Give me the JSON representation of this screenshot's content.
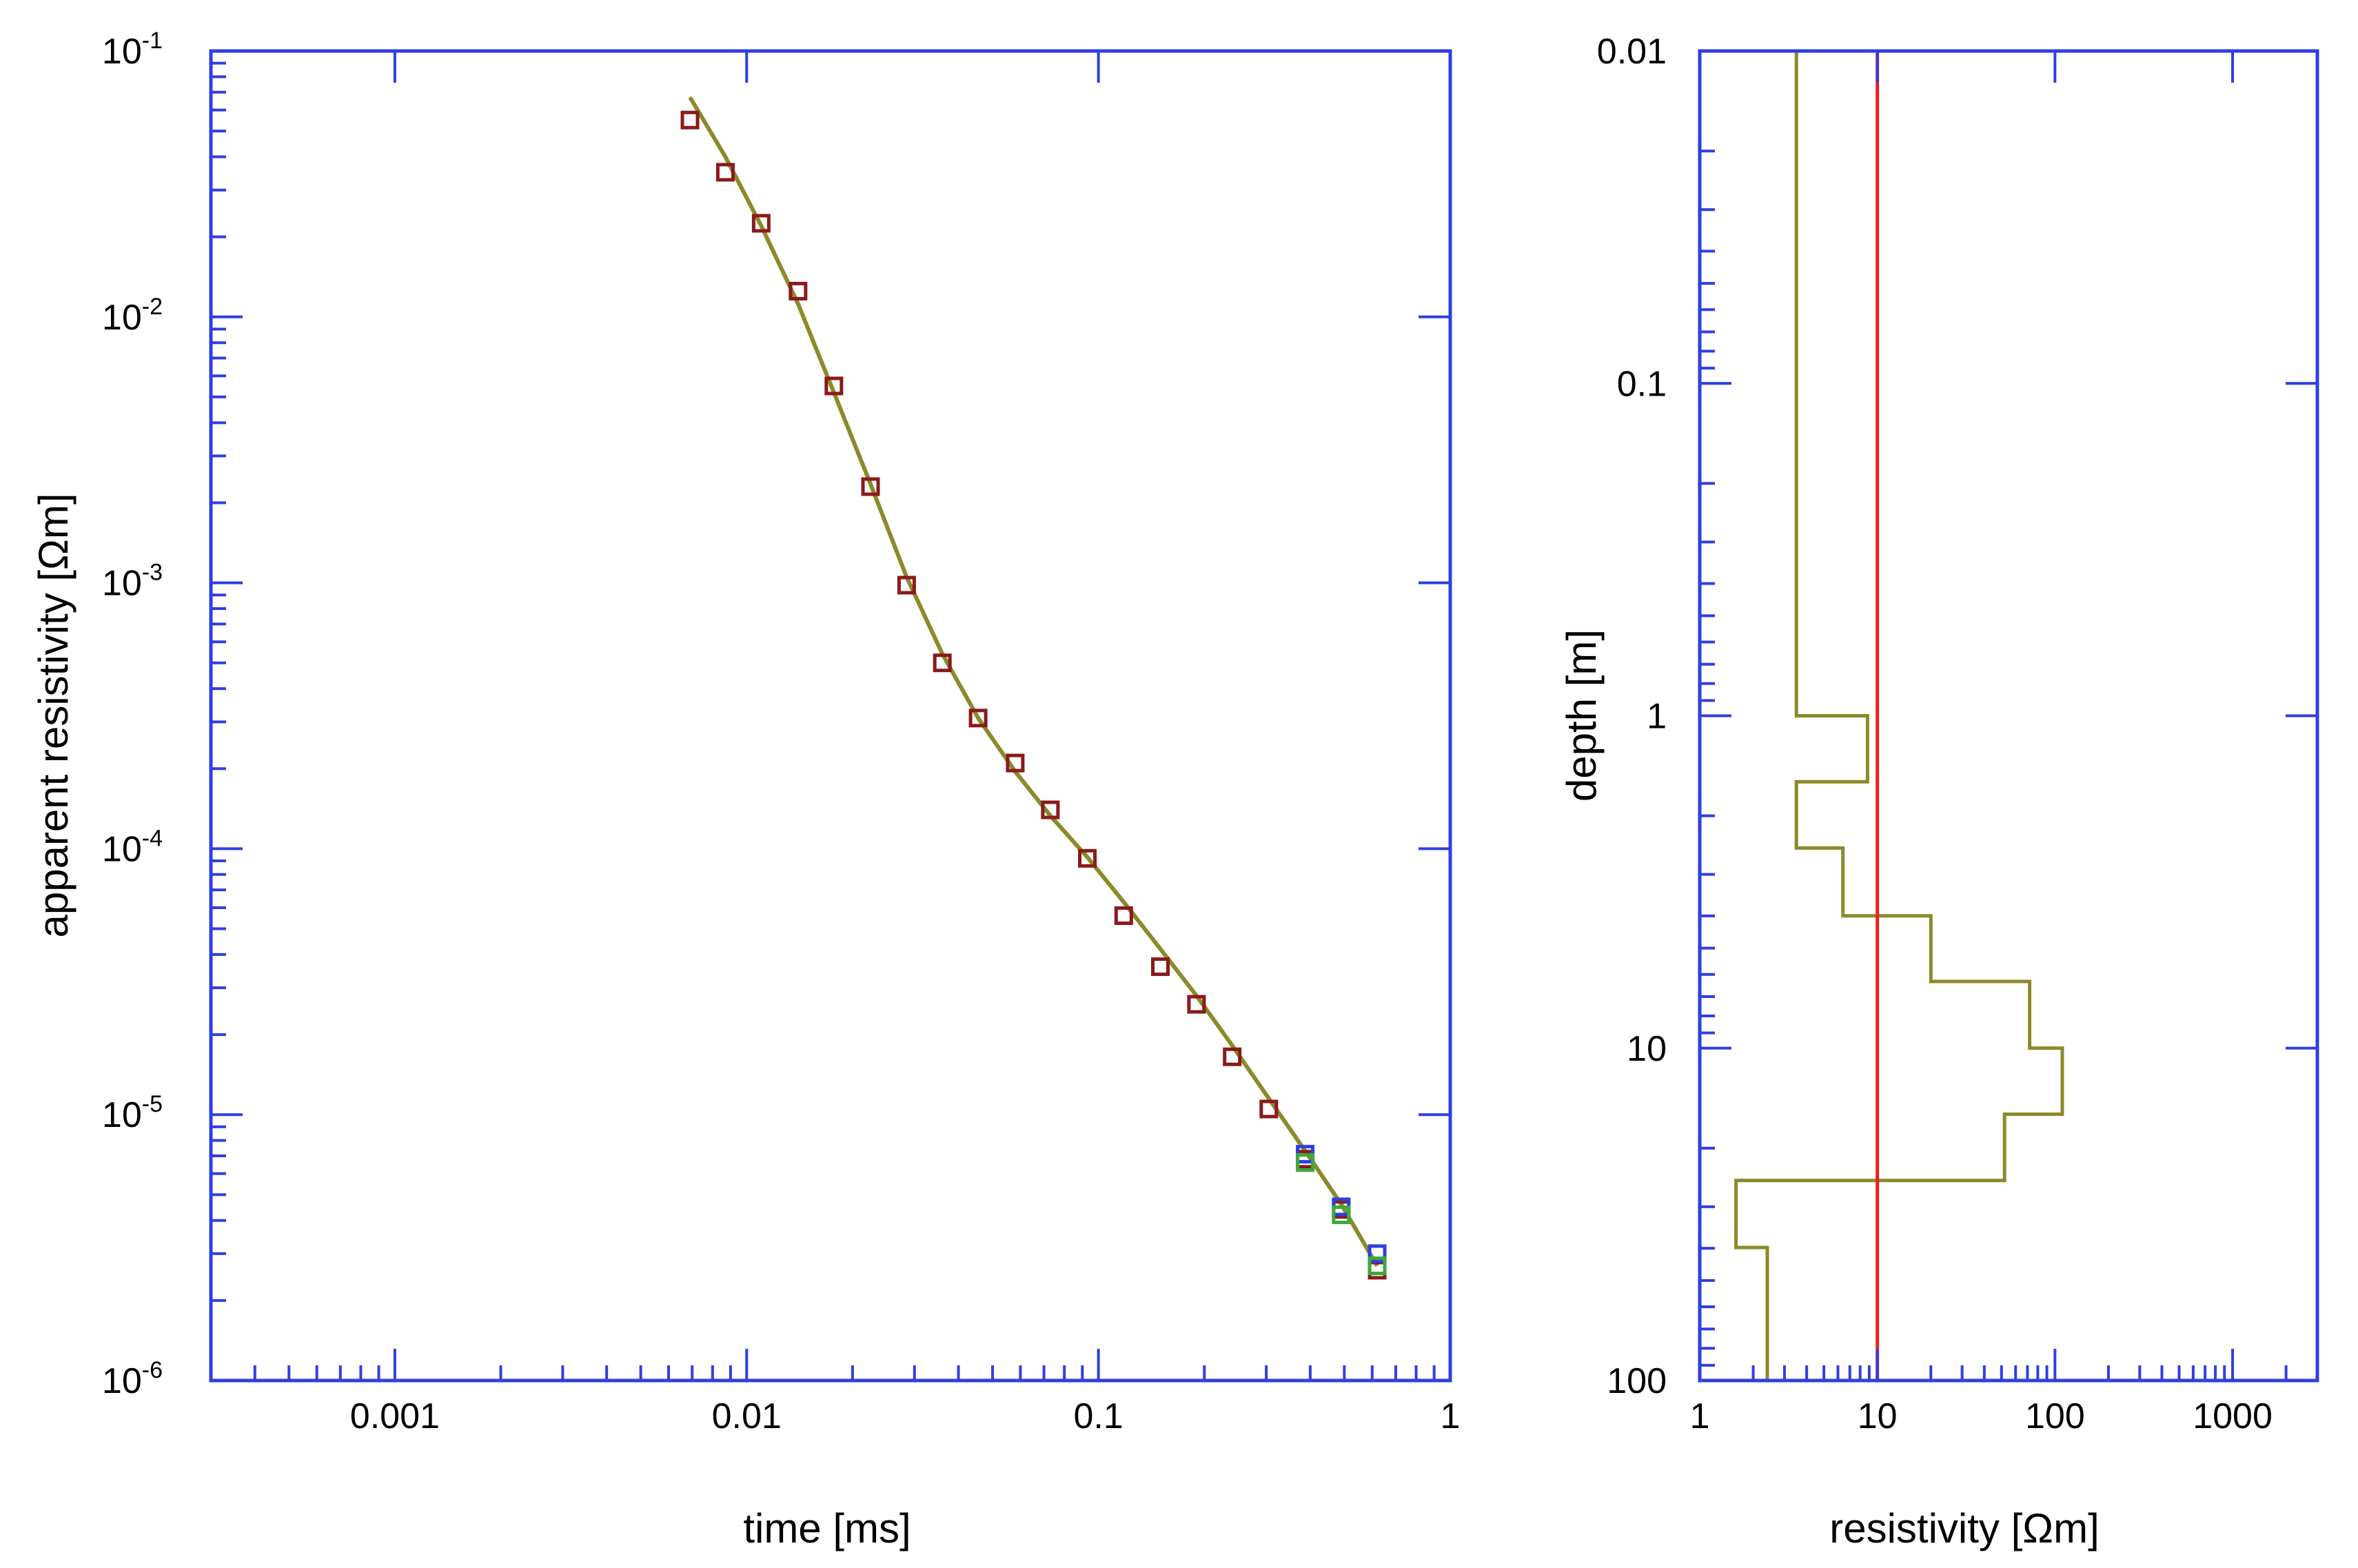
{
  "chart_data": [
    {
      "type": "scatter",
      "title": "",
      "xlabel": "time [ms]",
      "ylabel": "apparent resistivity [Ωm]",
      "xscale": "log",
      "yscale": "log",
      "xlim": [
        0.0003,
        1
      ],
      "ylim": [
        1e-06,
        0.1
      ],
      "x_tick_labels": [
        {
          "value": 0.001,
          "label": "0.001"
        },
        {
          "value": 0.01,
          "label": "0.01"
        },
        {
          "value": 0.1,
          "label": "0.1"
        },
        {
          "value": 1,
          "label": "1"
        }
      ],
      "y_tick_labels": [
        {
          "value": 0.1,
          "base": "10",
          "exp": "-1"
        },
        {
          "value": 0.01,
          "base": "10",
          "exp": "-2"
        },
        {
          "value": 0.001,
          "base": "10",
          "exp": "-3"
        },
        {
          "value": 0.0001,
          "base": "10",
          "exp": "-4"
        },
        {
          "value": 1e-05,
          "base": "10",
          "exp": "-5"
        },
        {
          "value": 1e-06,
          "base": "10",
          "exp": "-6"
        }
      ],
      "grid": false,
      "axis_color": "#2f3fe0",
      "series": [
        {
          "kind": "markers",
          "marker": "open-square",
          "color": "#8b1a1a",
          "x": [
            0.0069,
            0.0087,
            0.011,
            0.014,
            0.0177,
            0.0225,
            0.0285,
            0.036,
            0.0455,
            0.058,
            0.073,
            0.093,
            0.118,
            0.15,
            0.19,
            0.24,
            0.305,
            0.387,
            0.49,
            0.62
          ],
          "y": [
            0.055,
            0.035,
            0.0225,
            0.0125,
            0.0055,
            0.0023,
            0.00098,
            0.0005,
            0.00031,
            0.00021,
            0.00014,
            9.2e-05,
            5.6e-05,
            3.6e-05,
            2.6e-05,
            1.65e-05,
            1.05e-05,
            6.8e-06,
            4.4e-06,
            2.6e-06
          ]
        },
        {
          "kind": "markers",
          "marker": "open-square",
          "color": "#2f3fe0",
          "x": [
            0.387,
            0.49,
            0.62
          ],
          "y": [
            7.1e-06,
            4.5e-06,
            3e-06
          ]
        },
        {
          "kind": "markers",
          "marker": "open-square",
          "color": "#3caa3c",
          "x": [
            0.387,
            0.49,
            0.62
          ],
          "y": [
            6.6e-06,
            4.2e-06,
            2.7e-06
          ]
        },
        {
          "kind": "line",
          "color": "#8c8a2a",
          "x": [
            0.0069,
            0.0087,
            0.011,
            0.014,
            0.0177,
            0.0225,
            0.0285,
            0.036,
            0.0455,
            0.058,
            0.073,
            0.093,
            0.118,
            0.15,
            0.19,
            0.24,
            0.305,
            0.387,
            0.49,
            0.62
          ],
          "y": [
            0.067,
            0.04,
            0.022,
            0.0112,
            0.0052,
            0.00235,
            0.00105,
            0.00054,
            0.00031,
            0.000195,
            0.000133,
            9.3e-05,
            6.3e-05,
            4.2e-05,
            2.8e-05,
            1.82e-05,
            1.15e-05,
            7.3e-06,
            4.6e-06,
            2.7e-06
          ]
        }
      ]
    },
    {
      "type": "line",
      "title": "",
      "xlabel": "resistivity [Ωm]",
      "ylabel": "depth [m]",
      "xscale": "log",
      "yscale": "log",
      "y_inverted": true,
      "xlim": [
        1,
        3000
      ],
      "ylim": [
        0.01,
        100
      ],
      "x_tick_labels": [
        {
          "value": 1,
          "label": "1"
        },
        {
          "value": 10,
          "label": "10"
        },
        {
          "value": 100,
          "label": "100"
        },
        {
          "value": 1000,
          "label": "1000"
        }
      ],
      "y_tick_labels": [
        {
          "value": 0.01,
          "label": "0.01"
        },
        {
          "value": 0.1,
          "label": "0.1"
        },
        {
          "value": 1,
          "label": "1"
        },
        {
          "value": 10,
          "label": "10"
        },
        {
          "value": 100,
          "label": "100"
        }
      ],
      "grid": false,
      "axis_color": "#2f3fe0",
      "series": [
        {
          "kind": "step-profile",
          "color": "#8c8a2a",
          "resistivity": [
            3.5,
            8.8,
            3.5,
            6.4,
            20,
            72,
            110,
            52,
            1.6,
            2.4
          ],
          "depth_boundaries": [
            0.01,
            1.0,
            1.58,
            2.5,
            4.0,
            6.3,
            10.0,
            15.8,
            25.0,
            39.8,
            100
          ]
        },
        {
          "kind": "vertical-line",
          "color": "#e8231e",
          "x": 10
        }
      ]
    }
  ]
}
